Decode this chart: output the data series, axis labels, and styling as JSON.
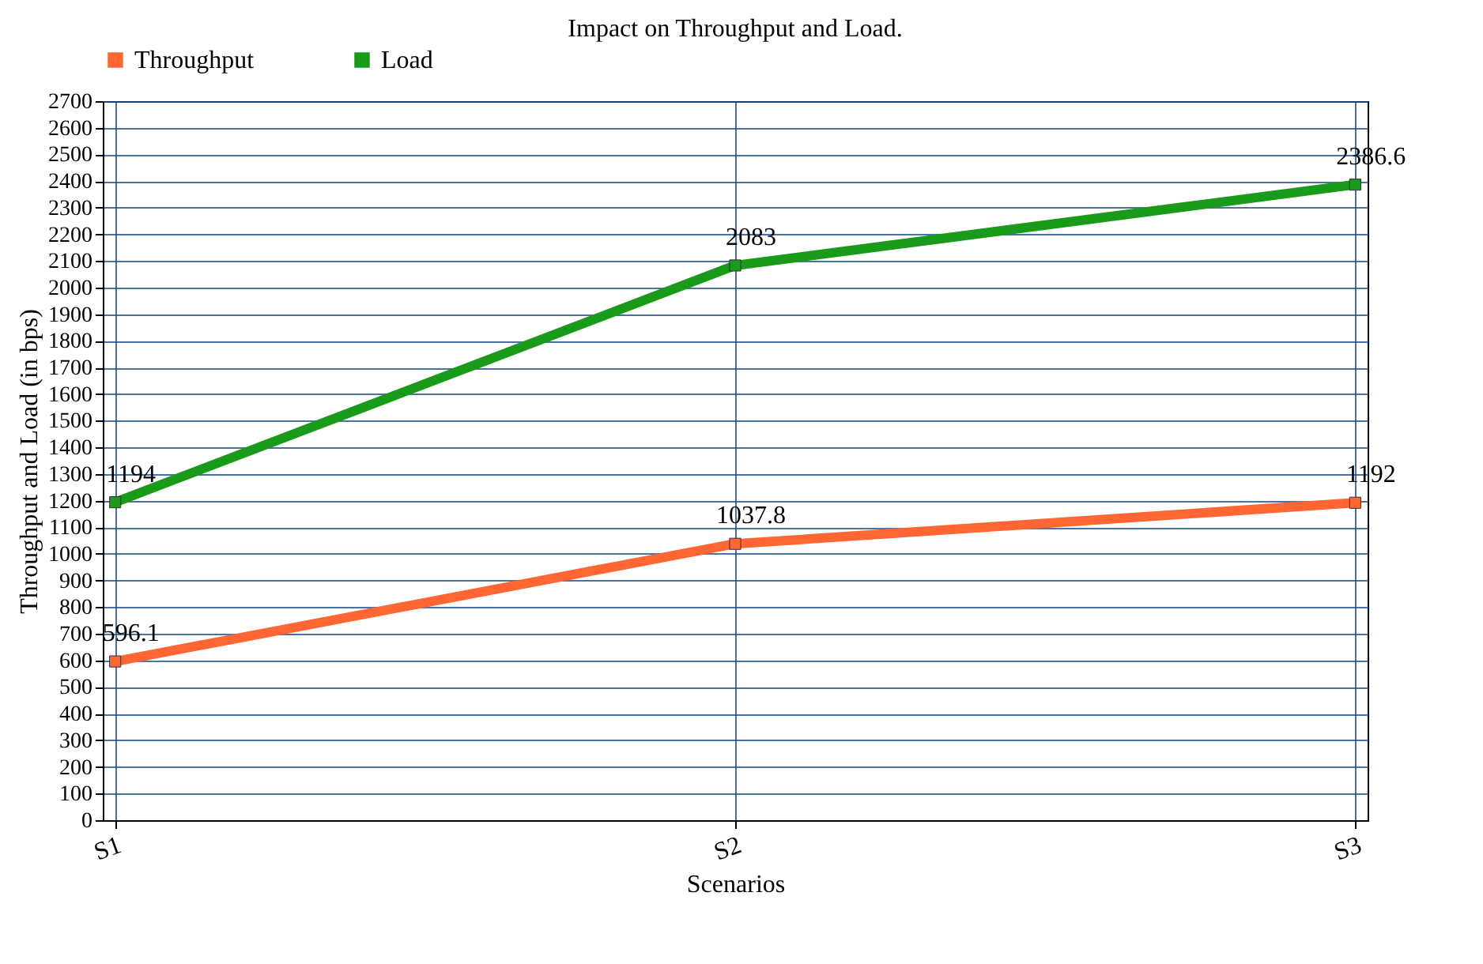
{
  "chart_data": {
    "type": "line",
    "title": "Impact on Throughput and Load.",
    "xlabel": "Scenarios",
    "ylabel": "Throughput and Load (in bps)",
    "categories": [
      "S1",
      "S2",
      "S3"
    ],
    "series": [
      {
        "name": "Throughput",
        "color": "#ff6633",
        "values": [
          596.1,
          1037.8,
          1192
        ]
      },
      {
        "name": "Load",
        "color": "#1a9a1a",
        "values": [
          1194,
          2083,
          2386.6
        ]
      }
    ],
    "ylim": [
      0,
      2700
    ],
    "yticks": [
      0,
      100,
      200,
      300,
      400,
      500,
      600,
      700,
      800,
      900,
      1000,
      1100,
      1200,
      1300,
      1400,
      1500,
      1600,
      1700,
      1800,
      1900,
      2000,
      2100,
      2200,
      2300,
      2400,
      2500,
      2600,
      2700
    ],
    "grid": true,
    "legend": "top left",
    "marker": "square",
    "line_style": "solid",
    "data_labels": true
  }
}
